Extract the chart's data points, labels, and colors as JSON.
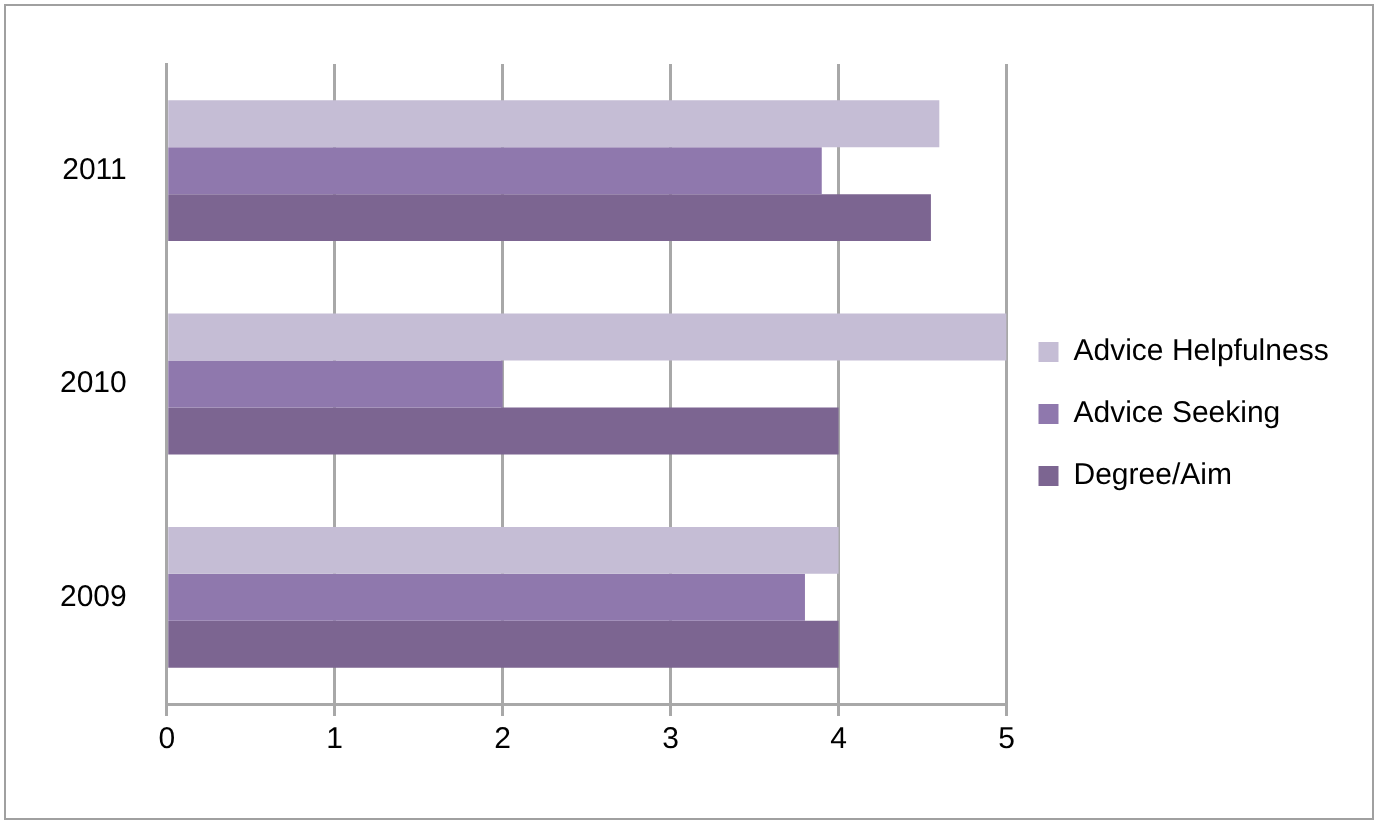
{
  "chart_data": {
    "type": "bar",
    "orientation": "horizontal",
    "categories": [
      "2011",
      "2010",
      "2009"
    ],
    "series": [
      {
        "name": "Advice Helpfulness",
        "color": "#c5bdd5",
        "values": [
          4.6,
          5,
          4
        ]
      },
      {
        "name": "Advice Seeking",
        "color": "#8f78ad",
        "values": [
          3.9,
          2,
          3.8
        ]
      },
      {
        "name": "Degree/Aim",
        "color": "#7c6591",
        "values": [
          4.55,
          4,
          4
        ]
      }
    ],
    "xlim": [
      0,
      5
    ],
    "xticks": [
      0,
      1,
      2,
      3,
      4,
      5
    ],
    "grid": "x",
    "legend": "right"
  }
}
